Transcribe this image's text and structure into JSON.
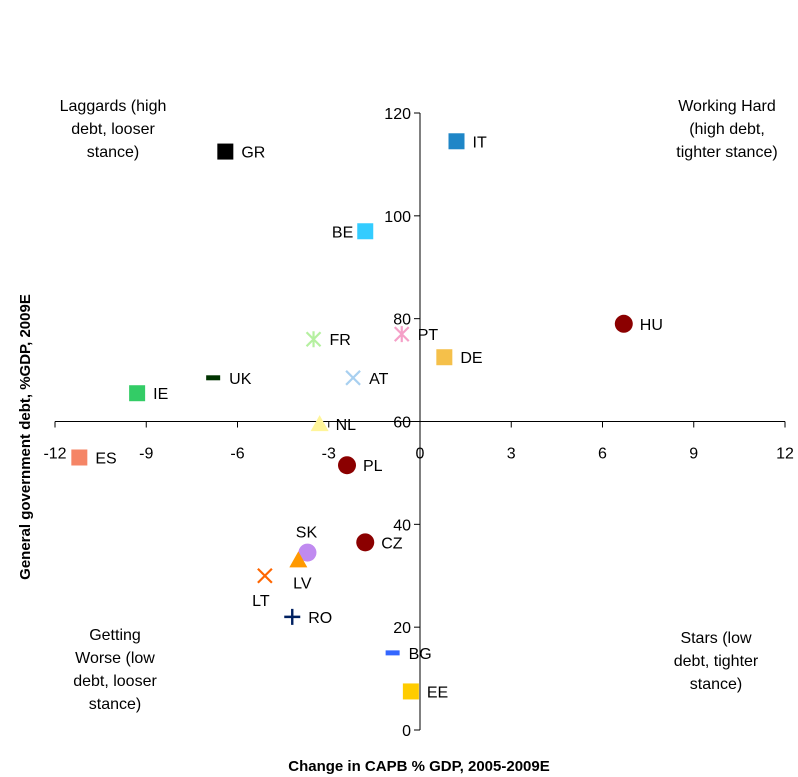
{
  "chart_data": {
    "type": "scatter",
    "title": "",
    "xlabel": "Change in CAPB % GDP, 2005-2009E",
    "ylabel": "General government debt, %GDP, 2009E",
    "xlim": [
      -12,
      12
    ],
    "ylim": [
      0,
      120
    ],
    "x_ticks": [
      "-12",
      "-9",
      "-6",
      "-3",
      "0",
      "3",
      "6",
      "9",
      "12"
    ],
    "y_ticks": [
      "0",
      "20",
      "40",
      "60",
      "80",
      "100",
      "120"
    ],
    "x_axis_crosses_y_at": 60,
    "quadrant_labels": {
      "top_left": [
        "Laggards (high",
        "debt, looser",
        "stance)"
      ],
      "top_right": [
        "Working Hard",
        "(high debt,",
        "tighter stance)"
      ],
      "bottom_left": [
        "Getting",
        "Worse (low",
        "debt, looser",
        "stance)"
      ],
      "bottom_right": [
        "Stars (low",
        "debt, tighter",
        "stance)"
      ]
    },
    "points": [
      {
        "label": "GR",
        "x": -6.4,
        "y": 112.5,
        "marker": "square",
        "color": "#000000",
        "label_side": "right"
      },
      {
        "label": "IT",
        "x": 1.2,
        "y": 114.5,
        "marker": "square",
        "color": "#1f86c7",
        "label_side": "right"
      },
      {
        "label": "BE",
        "x": -1.8,
        "y": 97,
        "marker": "square",
        "color": "#33ccff",
        "label_side": "left"
      },
      {
        "label": "HU",
        "x": 6.7,
        "y": 79,
        "marker": "circle",
        "color": "#8b0000",
        "label_side": "right"
      },
      {
        "label": "PT",
        "x": -0.6,
        "y": 77,
        "marker": "asterisk",
        "color": "#f5a0c8",
        "label_side": "right"
      },
      {
        "label": "FR",
        "x": -3.5,
        "y": 76,
        "marker": "asterisk",
        "color": "#b5f0a0",
        "label_side": "right"
      },
      {
        "label": "DE",
        "x": 0.8,
        "y": 72.5,
        "marker": "square",
        "color": "#f5c04a",
        "label_side": "right"
      },
      {
        "label": "UK",
        "x": -6.8,
        "y": 68.5,
        "marker": "dash",
        "color": "#003300",
        "label_side": "right"
      },
      {
        "label": "AT",
        "x": -2.2,
        "y": 68.5,
        "marker": "x",
        "color": "#a8d0f0",
        "label_side": "right"
      },
      {
        "label": "IE",
        "x": -9.3,
        "y": 65.5,
        "marker": "square",
        "color": "#33cc66",
        "label_side": "right"
      },
      {
        "label": "NL",
        "x": -3.3,
        "y": 59.5,
        "marker": "triangle",
        "color": "#fff59a",
        "label_side": "right"
      },
      {
        "label": "ES",
        "x": -11.2,
        "y": 53,
        "marker": "square",
        "color": "#f58566",
        "label_side": "right"
      },
      {
        "label": "PL",
        "x": -2.4,
        "y": 51.5,
        "marker": "circle",
        "color": "#8b0000",
        "label_side": "right"
      },
      {
        "label": "SK",
        "x": -3.7,
        "y": 34.5,
        "marker": "circle",
        "color": "#c08af0",
        "label_side": "above"
      },
      {
        "label": "CZ",
        "x": -1.8,
        "y": 36.5,
        "marker": "circle",
        "color": "#8b0000",
        "label_side": "right"
      },
      {
        "label": "LV",
        "x": -4.0,
        "y": 33,
        "marker": "triangle",
        "color": "#ff9900",
        "label_side": "below"
      },
      {
        "label": "LT",
        "x": -5.1,
        "y": 30,
        "marker": "x",
        "color": "#ff6600",
        "label_side": "below"
      },
      {
        "label": "RO",
        "x": -4.2,
        "y": 22,
        "marker": "plus",
        "color": "#002060",
        "label_side": "right"
      },
      {
        "label": "BG",
        "x": -0.9,
        "y": 15,
        "marker": "dash",
        "color": "#3366ff",
        "label_side": "right"
      },
      {
        "label": "EE",
        "x": -0.3,
        "y": 7.5,
        "marker": "square",
        "color": "#ffcc00",
        "label_side": "right"
      }
    ]
  }
}
